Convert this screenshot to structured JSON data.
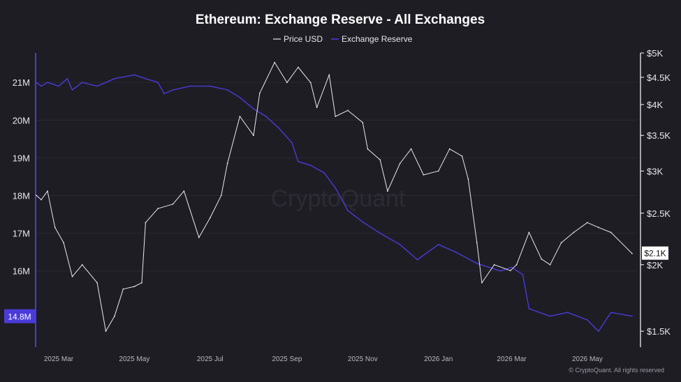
{
  "chart_data": {
    "type": "line",
    "title": "Ethereum: Exchange Reserve - All Exchanges",
    "legend": {
      "placement": "top-center",
      "items": [
        {
          "name": "Price USD",
          "color": "#e8e8ec"
        },
        {
          "name": "Exchange Reserve",
          "color": "#4a3bd8"
        }
      ]
    },
    "watermark": "CryptoQuant",
    "copyright": "© CryptoQuant. All rights reserved",
    "x_axis": {
      "range": [
        "2025-02-11",
        "2026-06-10"
      ],
      "ticks": [
        {
          "date": "2025-03-01",
          "label": "2025 Mar"
        },
        {
          "date": "2025-05-01",
          "label": "2025 May"
        },
        {
          "date": "2025-07-01",
          "label": "2025 Jul"
        },
        {
          "date": "2025-09-01",
          "label": "2025 Sep"
        },
        {
          "date": "2025-11-01",
          "label": "2025 Nov"
        },
        {
          "date": "2026-01-01",
          "label": "2026 Jan"
        },
        {
          "date": "2026-03-01",
          "label": "2026 Mar"
        },
        {
          "date": "2026-05-01",
          "label": "2026 May"
        }
      ]
    },
    "y_left": {
      "series": "Exchange Reserve",
      "range": [
        13.98,
        21.78
      ],
      "grid": true,
      "ticks": [
        {
          "value": 16,
          "label": "16M"
        },
        {
          "value": 17,
          "label": "17M"
        },
        {
          "value": 18,
          "label": "18M"
        },
        {
          "value": 19,
          "label": "19M"
        },
        {
          "value": 20,
          "label": "20M"
        },
        {
          "value": 21,
          "label": "21M"
        }
      ],
      "last_value": {
        "value": 14.8,
        "label": "14.8M",
        "color": "#4a3bd8"
      }
    },
    "y_right": {
      "series": "Price USD",
      "scale": "log",
      "range": [
        1400,
        5000
      ],
      "ticks": [
        {
          "value": 1500,
          "label": "$1.5K"
        },
        {
          "value": 2000,
          "label": "$2K"
        },
        {
          "value": 2500,
          "label": "$2.5K"
        },
        {
          "value": 3000,
          "label": "$3K"
        },
        {
          "value": 3500,
          "label": "$3.5K"
        },
        {
          "value": 4000,
          "label": "$4K"
        },
        {
          "value": 4500,
          "label": "$4.5K"
        },
        {
          "value": 5000,
          "label": "$5K"
        }
      ],
      "last_value": {
        "value": 2100,
        "label": "$2.1K"
      }
    },
    "series": [
      {
        "name": "Exchange Reserve",
        "unit": "M ETH",
        "axis": "left",
        "color": "#4a3bd8",
        "points": [
          [
            "2025-02-11",
            21.0
          ],
          [
            "2025-02-15",
            20.9
          ],
          [
            "2025-02-20",
            21.0
          ],
          [
            "2025-03-01",
            20.9
          ],
          [
            "2025-03-08",
            21.1
          ],
          [
            "2025-03-12",
            20.8
          ],
          [
            "2025-03-20",
            21.0
          ],
          [
            "2025-04-01",
            20.9
          ],
          [
            "2025-04-15",
            21.1
          ],
          [
            "2025-05-01",
            21.2
          ],
          [
            "2025-05-10",
            21.1
          ],
          [
            "2025-05-20",
            21.0
          ],
          [
            "2025-05-25",
            20.7
          ],
          [
            "2025-06-01",
            20.8
          ],
          [
            "2025-06-15",
            20.9
          ],
          [
            "2025-07-01",
            20.9
          ],
          [
            "2025-07-15",
            20.8
          ],
          [
            "2025-07-25",
            20.6
          ],
          [
            "2025-08-05",
            20.3
          ],
          [
            "2025-08-15",
            20.1
          ],
          [
            "2025-08-25",
            19.8
          ],
          [
            "2025-09-05",
            19.4
          ],
          [
            "2025-09-10",
            18.9
          ],
          [
            "2025-09-20",
            18.8
          ],
          [
            "2025-10-01",
            18.6
          ],
          [
            "2025-10-10",
            18.2
          ],
          [
            "2025-10-20",
            17.6
          ],
          [
            "2025-11-01",
            17.3
          ],
          [
            "2025-11-15",
            17.0
          ],
          [
            "2025-12-01",
            16.7
          ],
          [
            "2025-12-15",
            16.3
          ],
          [
            "2026-01-01",
            16.7
          ],
          [
            "2026-01-15",
            16.5
          ],
          [
            "2026-02-01",
            16.2
          ],
          [
            "2026-02-20",
            16.0
          ],
          [
            "2026-03-01",
            16.1
          ],
          [
            "2026-03-10",
            15.9
          ],
          [
            "2026-03-15",
            15.0
          ],
          [
            "2026-04-01",
            14.8
          ],
          [
            "2026-04-15",
            14.9
          ],
          [
            "2026-05-01",
            14.7
          ],
          [
            "2026-05-10",
            14.4
          ],
          [
            "2026-05-20",
            14.9
          ],
          [
            "2026-06-06",
            14.8
          ]
        ]
      },
      {
        "name": "Price USD",
        "unit": "USD",
        "axis": "right",
        "color": "#e8e8ec",
        "points": [
          [
            "2025-02-11",
            2700
          ],
          [
            "2025-02-15",
            2650
          ],
          [
            "2025-02-20",
            2750
          ],
          [
            "2025-02-26",
            2350
          ],
          [
            "2025-03-05",
            2200
          ],
          [
            "2025-03-12",
            1900
          ],
          [
            "2025-03-20",
            2000
          ],
          [
            "2025-04-01",
            1850
          ],
          [
            "2025-04-08",
            1500
          ],
          [
            "2025-04-15",
            1600
          ],
          [
            "2025-04-22",
            1800
          ],
          [
            "2025-05-01",
            1820
          ],
          [
            "2025-05-07",
            1850
          ],
          [
            "2025-05-10",
            2400
          ],
          [
            "2025-05-20",
            2550
          ],
          [
            "2025-06-01",
            2600
          ],
          [
            "2025-06-10",
            2750
          ],
          [
            "2025-06-22",
            2250
          ],
          [
            "2025-07-01",
            2450
          ],
          [
            "2025-07-10",
            2700
          ],
          [
            "2025-07-15",
            3100
          ],
          [
            "2025-07-25",
            3800
          ],
          [
            "2025-08-05",
            3500
          ],
          [
            "2025-08-10",
            4200
          ],
          [
            "2025-08-22",
            4800
          ],
          [
            "2025-09-01",
            4400
          ],
          [
            "2025-09-10",
            4700
          ],
          [
            "2025-09-20",
            4400
          ],
          [
            "2025-09-25",
            3950
          ],
          [
            "2025-10-05",
            4550
          ],
          [
            "2025-10-10",
            3800
          ],
          [
            "2025-10-20",
            3900
          ],
          [
            "2025-11-01",
            3700
          ],
          [
            "2025-11-05",
            3300
          ],
          [
            "2025-11-15",
            3150
          ],
          [
            "2025-11-21",
            2750
          ],
          [
            "2025-12-01",
            3100
          ],
          [
            "2025-12-10",
            3300
          ],
          [
            "2025-12-20",
            2950
          ],
          [
            "2026-01-01",
            3000
          ],
          [
            "2026-01-10",
            3300
          ],
          [
            "2026-01-20",
            3200
          ],
          [
            "2026-01-25",
            2900
          ],
          [
            "2026-02-01",
            2200
          ],
          [
            "2026-02-05",
            1850
          ],
          [
            "2026-02-15",
            2000
          ],
          [
            "2026-02-28",
            1950
          ],
          [
            "2026-03-05",
            2000
          ],
          [
            "2026-03-15",
            2300
          ],
          [
            "2026-03-25",
            2050
          ],
          [
            "2026-04-01",
            2000
          ],
          [
            "2026-04-10",
            2200
          ],
          [
            "2026-04-20",
            2300
          ],
          [
            "2026-05-01",
            2400
          ],
          [
            "2026-05-10",
            2350
          ],
          [
            "2026-05-20",
            2300
          ],
          [
            "2026-06-06",
            2100
          ]
        ]
      }
    ]
  }
}
